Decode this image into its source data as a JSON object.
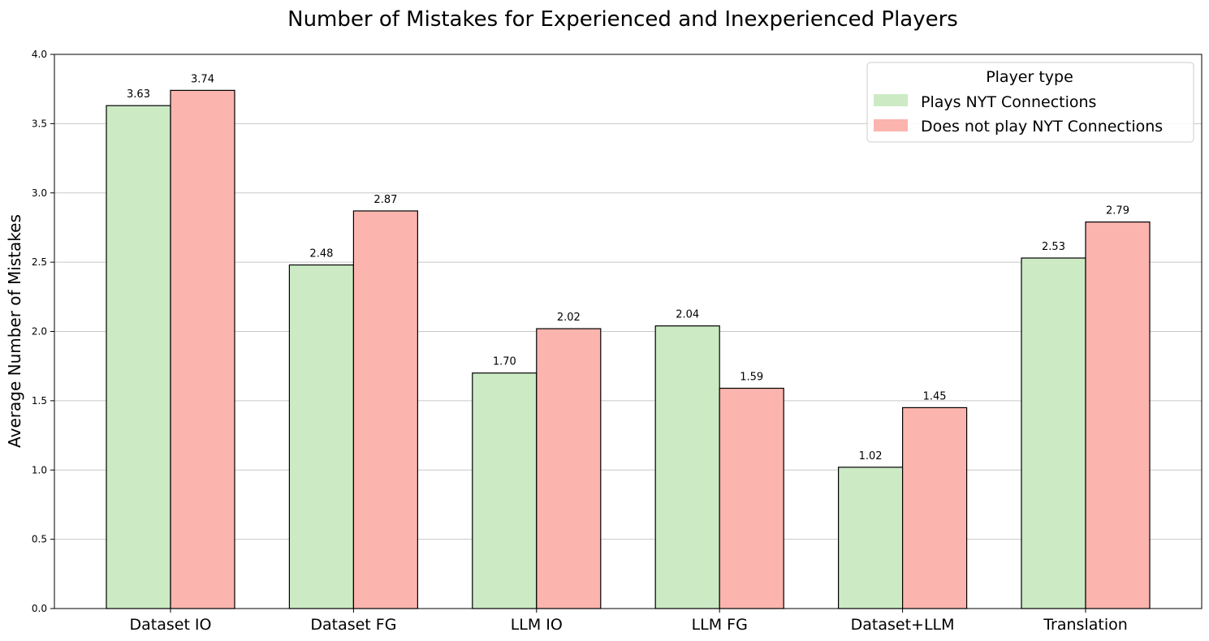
{
  "chart_data": {
    "type": "bar",
    "title": "Number of Mistakes for Experienced and Inexperienced Players",
    "xlabel": "",
    "ylabel": "Average Number of Mistakes",
    "categories": [
      "Dataset IO",
      "Dataset FG",
      "LLM IO",
      "LLM FG",
      "Dataset+LLM",
      "Translation"
    ],
    "series": [
      {
        "name": "Plays NYT Connections",
        "values": [
          3.63,
          2.48,
          1.7,
          2.04,
          1.02,
          2.53
        ],
        "color": "#ccebc5"
      },
      {
        "name": "Does not play NYT Connections",
        "values": [
          3.74,
          2.87,
          2.02,
          1.59,
          1.45,
          2.79
        ],
        "color": "#fbb4ae"
      }
    ],
    "ylim": [
      0,
      4.0
    ],
    "yticks": [
      "0.0",
      "0.5",
      "1.0",
      "1.5",
      "2.0",
      "2.5",
      "3.0",
      "3.5",
      "4.0"
    ],
    "grid": "y",
    "legend": {
      "title": "Player type",
      "placement": "top-right"
    },
    "bar_edge_color": "#000000"
  }
}
